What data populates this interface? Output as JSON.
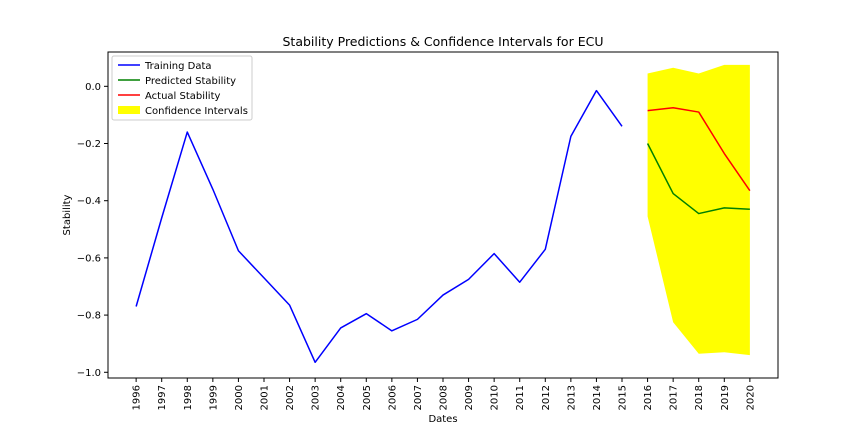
{
  "chart_data": {
    "type": "line",
    "title": "Stability Predictions & Confidence Intervals for ECU",
    "xlabel": "Dates",
    "ylabel": "Stability",
    "ylim": [
      -1.02,
      0.12
    ],
    "xlim": [
      1994.9,
      2021.1
    ],
    "grid": false,
    "legend_position": "top-left",
    "x": [
      1996,
      1997,
      1998,
      1999,
      2000,
      2001,
      2002,
      2003,
      2004,
      2005,
      2006,
      2007,
      2008,
      2009,
      2010,
      2011,
      2012,
      2013,
      2014,
      2015,
      2016,
      2017,
      2018,
      2019,
      2020
    ],
    "x_tick_labels": [
      "1996",
      "1997",
      "1998",
      "1999",
      "2000",
      "2001",
      "2002",
      "2003",
      "2004",
      "2005",
      "2006",
      "2007",
      "2008",
      "2009",
      "2010",
      "2011",
      "2012",
      "2013",
      "2014",
      "2015",
      "2016",
      "2017",
      "2018",
      "2019",
      "2020"
    ],
    "y_ticks": [
      0.0,
      -0.2,
      -0.4,
      -0.6,
      -0.8,
      -1.0
    ],
    "y_tick_labels": [
      "0.0",
      "−0.2",
      "−0.4",
      "−0.6",
      "−0.8",
      "−1.0"
    ],
    "series": [
      {
        "name": "Training Data",
        "color": "#0000ff",
        "x": [
          1996,
          1997,
          1998,
          1999,
          2000,
          2001,
          2002,
          2003,
          2004,
          2005,
          2006,
          2007,
          2008,
          2009,
          2010,
          2011,
          2012,
          2013,
          2014,
          2015
        ],
        "values": [
          -0.77,
          -0.46,
          -0.16,
          -0.36,
          -0.575,
          -0.67,
          -0.765,
          -0.965,
          -0.845,
          -0.795,
          -0.855,
          -0.815,
          -0.73,
          -0.675,
          -0.585,
          -0.685,
          -0.57,
          -0.175,
          -0.015,
          -0.14
        ]
      },
      {
        "name": "Predicted Stability",
        "color": "#008000",
        "x": [
          2016,
          2017,
          2018,
          2019,
          2020
        ],
        "values": [
          -0.2,
          -0.375,
          -0.445,
          -0.425,
          -0.43
        ]
      },
      {
        "name": "Actual Stability",
        "color": "#ff0000",
        "x": [
          2016,
          2017,
          2018,
          2019,
          2020
        ],
        "values": [
          -0.085,
          -0.075,
          -0.09,
          -0.235,
          -0.365
        ]
      }
    ],
    "confidence_interval": {
      "name": "Confidence Intervals",
      "color": "#ffff00",
      "x": [
        2016,
        2017,
        2018,
        2019,
        2020
      ],
      "upper": [
        0.045,
        0.065,
        0.045,
        0.075,
        0.075
      ],
      "lower": [
        -0.455,
        -0.825,
        -0.935,
        -0.93,
        -0.94
      ]
    }
  }
}
